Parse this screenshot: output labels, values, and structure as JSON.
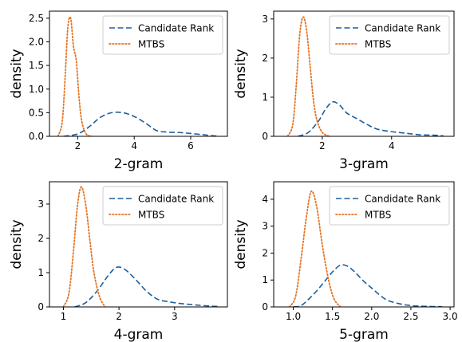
{
  "chart_data": [
    {
      "type": "line",
      "xlabel": "2-gram",
      "ylabel": "density",
      "xlim": [
        1.0,
        7.3
      ],
      "ylim": [
        0,
        2.65
      ],
      "xticks": [
        2,
        4,
        6
      ],
      "xtick_labels": [
        "2",
        "4",
        "6"
      ],
      "yticks": [
        0.0,
        0.5,
        1.0,
        1.5,
        2.0,
        2.5
      ],
      "ytick_labels": [
        "0.0",
        "0.5",
        "1.0",
        "1.5",
        "2.0",
        "2.5"
      ],
      "grid": false,
      "legend_position": "top-right",
      "series": [
        {
          "name": "Candidate Rank",
          "style": "dashed",
          "color": "#1f5f9e",
          "x": [
            1.5,
            2.0,
            2.4,
            2.8,
            3.2,
            3.6,
            4.0,
            4.4,
            4.8,
            5.2,
            5.6,
            6.0,
            6.5,
            7.0
          ],
          "y": [
            0.0,
            0.05,
            0.2,
            0.4,
            0.5,
            0.5,
            0.42,
            0.28,
            0.12,
            0.09,
            0.08,
            0.06,
            0.03,
            0.0
          ]
        },
        {
          "name": "MTBS",
          "style": "dotted",
          "color": "#e37222",
          "x": [
            1.3,
            1.45,
            1.55,
            1.65,
            1.75,
            1.85,
            1.95,
            2.05,
            2.15,
            2.3,
            2.5
          ],
          "y": [
            0.0,
            0.3,
            1.2,
            2.3,
            2.5,
            1.9,
            1.6,
            0.8,
            0.3,
            0.05,
            0.0
          ]
        }
      ]
    },
    {
      "type": "line",
      "xlabel": "3-gram",
      "ylabel": "density",
      "xlim": [
        0.6,
        5.8
      ],
      "ylim": [
        0,
        3.2
      ],
      "xticks": [
        2,
        4
      ],
      "xtick_labels": [
        "2",
        "4"
      ],
      "yticks": [
        0,
        1,
        2,
        3
      ],
      "ytick_labels": [
        "0",
        "1",
        "2",
        "3"
      ],
      "grid": false,
      "legend_position": "top-right",
      "series": [
        {
          "name": "Candidate Rank",
          "style": "dashed",
          "color": "#1f5f9e",
          "x": [
            1.3,
            1.6,
            1.9,
            2.1,
            2.3,
            2.5,
            2.7,
            3.0,
            3.3,
            3.6,
            4.0,
            4.4,
            4.8,
            5.2,
            5.5
          ],
          "y": [
            0.0,
            0.1,
            0.4,
            0.7,
            0.88,
            0.8,
            0.6,
            0.45,
            0.3,
            0.18,
            0.12,
            0.08,
            0.04,
            0.03,
            0.01
          ]
        },
        {
          "name": "MTBS",
          "style": "dotted",
          "color": "#e37222",
          "x": [
            1.0,
            1.15,
            1.25,
            1.35,
            1.45,
            1.55,
            1.65,
            1.75,
            1.85,
            2.0,
            2.2
          ],
          "y": [
            0.0,
            0.3,
            1.3,
            2.6,
            3.05,
            2.7,
            1.8,
            0.9,
            0.4,
            0.1,
            0.0
          ]
        }
      ]
    },
    {
      "type": "line",
      "xlabel": "4-gram",
      "ylabel": "density",
      "xlim": [
        0.75,
        3.95
      ],
      "ylim": [
        0,
        3.65
      ],
      "xticks": [
        1,
        2,
        3
      ],
      "xtick_labels": [
        "1",
        "2",
        "3"
      ],
      "yticks": [
        0,
        1,
        2,
        3
      ],
      "ytick_labels": [
        "0",
        "1",
        "2",
        "3"
      ],
      "grid": false,
      "legend_position": "top-right",
      "series": [
        {
          "name": "Candidate Rank",
          "style": "dashed",
          "color": "#1f5f9e",
          "x": [
            1.2,
            1.4,
            1.6,
            1.8,
            1.95,
            2.1,
            2.3,
            2.5,
            2.7,
            2.9,
            3.1,
            3.3,
            3.5,
            3.8
          ],
          "y": [
            0.0,
            0.12,
            0.45,
            0.9,
            1.15,
            1.1,
            0.8,
            0.45,
            0.22,
            0.15,
            0.1,
            0.07,
            0.04,
            0.01
          ]
        },
        {
          "name": "MTBS",
          "style": "dotted",
          "color": "#e37222",
          "x": [
            1.0,
            1.1,
            1.18,
            1.25,
            1.32,
            1.4,
            1.48,
            1.55,
            1.65,
            1.75
          ],
          "y": [
            0.0,
            0.4,
            1.6,
            2.9,
            3.5,
            3.0,
            1.9,
            1.0,
            0.3,
            0.0
          ]
        }
      ]
    },
    {
      "type": "line",
      "xlabel": "5-gram",
      "ylabel": "density",
      "xlim": [
        0.75,
        3.05
      ],
      "ylim": [
        0,
        4.65
      ],
      "xticks": [
        1.0,
        1.5,
        2.0,
        2.5,
        3.0
      ],
      "xtick_labels": [
        "1.0",
        "1.5",
        "2.0",
        "2.5",
        "3.0"
      ],
      "yticks": [
        0,
        1,
        2,
        3,
        4
      ],
      "ytick_labels": [
        "0",
        "1",
        "2",
        "3",
        "4"
      ],
      "grid": false,
      "legend_position": "top-right",
      "series": [
        {
          "name": "Candidate Rank",
          "style": "dashed",
          "color": "#1f5f9e",
          "x": [
            1.0,
            1.1,
            1.2,
            1.3,
            1.4,
            1.5,
            1.6,
            1.7,
            1.8,
            1.9,
            2.0,
            2.1,
            2.2,
            2.35,
            2.5,
            2.7,
            2.9
          ],
          "y": [
            0.0,
            0.05,
            0.3,
            0.6,
            0.95,
            1.3,
            1.55,
            1.5,
            1.25,
            0.95,
            0.7,
            0.45,
            0.25,
            0.12,
            0.05,
            0.02,
            0.01
          ]
        },
        {
          "name": "MTBS",
          "style": "dotted",
          "color": "#e37222",
          "x": [
            0.95,
            1.03,
            1.1,
            1.17,
            1.23,
            1.3,
            1.37,
            1.45,
            1.52,
            1.6
          ],
          "y": [
            0.0,
            0.4,
            1.8,
            3.4,
            4.3,
            3.7,
            2.3,
            1.0,
            0.3,
            0.0
          ]
        }
      ]
    }
  ]
}
